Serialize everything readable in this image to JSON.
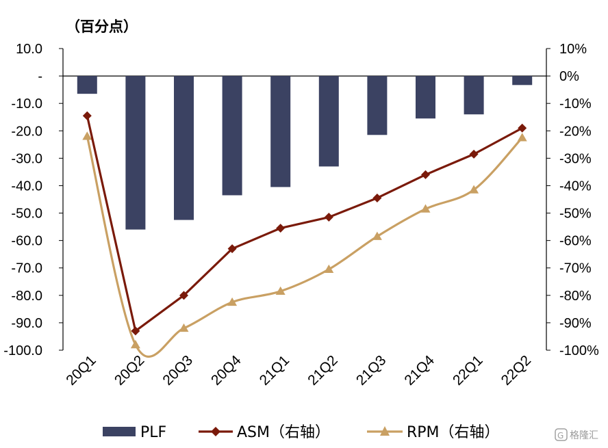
{
  "chart_data": {
    "type": "bar",
    "unit_label": "（百分点）",
    "categories": [
      "20Q1",
      "20Q2",
      "20Q3",
      "20Q4",
      "21Q1",
      "21Q2",
      "21Q3",
      "21Q4",
      "22Q1",
      "22Q2"
    ],
    "left_axis": {
      "ylim": [
        -100,
        10
      ],
      "tick_values": [
        10,
        0,
        -10,
        -20,
        -30,
        -40,
        -50,
        -60,
        -70,
        -80,
        -90,
        -100
      ],
      "tick_labels": [
        "10.0",
        "-",
        "-10.0",
        "-20.0",
        "-30.0",
        "-40.0",
        "-50.0",
        "-60.0",
        "-70.0",
        "-80.0",
        "-90.0",
        "-100.0"
      ]
    },
    "right_axis": {
      "ylim": [
        -100,
        10
      ],
      "tick_values": [
        10,
        0,
        -10,
        -20,
        -30,
        -40,
        -50,
        -60,
        -70,
        -80,
        -90,
        -100
      ],
      "tick_labels": [
        "10%",
        "0%",
        "-10%",
        "-20%",
        "-30%",
        "-40%",
        "-50%",
        "-60%",
        "-70%",
        "-80%",
        "-90%",
        "-100%"
      ]
    },
    "series": [
      {
        "name": "PLF",
        "type": "bar",
        "axis": "left",
        "color": "#3b4262",
        "values": [
          -6.5,
          -56,
          -52.5,
          -43.5,
          -40.5,
          -33,
          -21.5,
          -15.5,
          -14,
          -3.3
        ]
      },
      {
        "name": "ASM（右轴）",
        "type": "line",
        "axis": "right",
        "color": "#7a1a0a",
        "marker": "diamond",
        "values": [
          -14.5,
          -93,
          -80,
          -63,
          -55.5,
          -51.5,
          -44.5,
          -36,
          -28.5,
          -19
        ]
      },
      {
        "name": "RPM（右轴）",
        "type": "line",
        "axis": "right",
        "color": "#c9a063",
        "marker": "triangle",
        "smooth": true,
        "values": [
          -22,
          -98,
          -92,
          -82.5,
          -78.5,
          -70.5,
          -58.5,
          -48.5,
          -41.5,
          -22.5
        ]
      }
    ],
    "legend": {
      "placement": "bottom"
    }
  },
  "watermark": "格隆汇"
}
